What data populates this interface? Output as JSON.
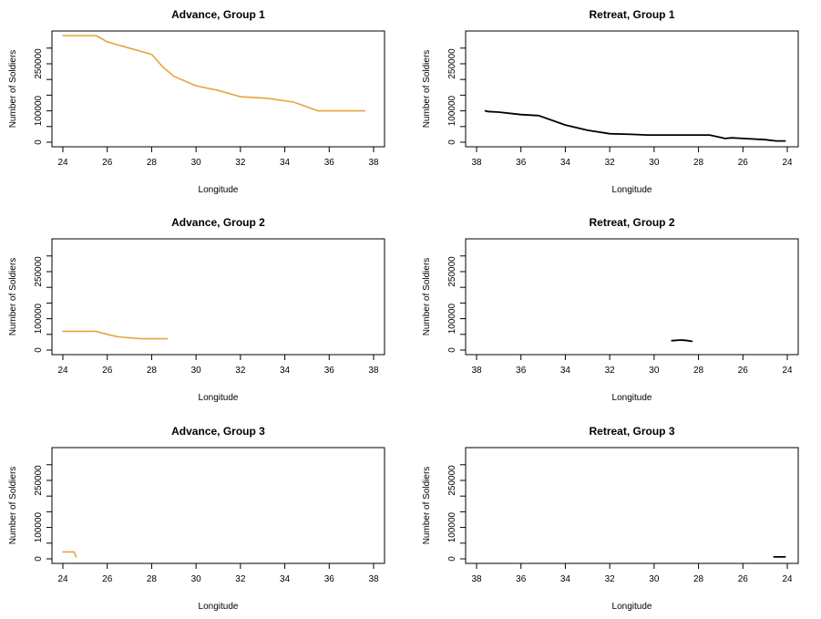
{
  "colors": {
    "advance": "#E8A33D",
    "retreat": "#000000",
    "frame": "#000000"
  },
  "chart_data": [
    {
      "type": "line",
      "title": "Advance, Group  1",
      "xlabel": "Longitude",
      "ylabel": "Number of Soldiers",
      "xlim": [
        24,
        38
      ],
      "ylim": [
        0,
        340000
      ],
      "x_reversed": false,
      "xticks": [
        "24",
        "26",
        "28",
        "30",
        "32",
        "34",
        "36",
        "38"
      ],
      "yticks": [
        "0",
        "100000",
        "250000"
      ],
      "series": [
        {
          "color": "#E8A33D",
          "x": [
            24.0,
            24.5,
            25.5,
            26.0,
            27.0,
            28.0,
            28.5,
            29.0,
            30.0,
            31.0,
            32.0,
            33.2,
            34.4,
            35.5,
            36.0,
            37.6
          ],
          "y": [
            340000,
            340000,
            340000,
            320000,
            300000,
            280000,
            240000,
            210000,
            180000,
            165000,
            145000,
            140000,
            128000,
            100000,
            100000,
            100000
          ]
        }
      ]
    },
    {
      "type": "line",
      "title": "Retreat, Group 1",
      "xlabel": "Longitude",
      "ylabel": "Number of Soldiers",
      "xlim": [
        38,
        24
      ],
      "ylim": [
        0,
        340000
      ],
      "x_reversed": true,
      "xticks": [
        "38",
        "36",
        "34",
        "32",
        "30",
        "28",
        "26",
        "24"
      ],
      "yticks": [
        "0",
        "100000",
        "250000"
      ],
      "series": [
        {
          "color": "#000000",
          "x": [
            37.6,
            37.5,
            37.0,
            36.0,
            35.2,
            34.0,
            33.0,
            32.0,
            31.0,
            30.3,
            29.0,
            28.0,
            27.5,
            26.8,
            26.5,
            26.0,
            25.0,
            24.5,
            24.1
          ],
          "y": [
            100000,
            98000,
            96000,
            88000,
            85000,
            55000,
            38000,
            27000,
            25000,
            23000,
            23000,
            23000,
            23000,
            12000,
            14000,
            12000,
            8000,
            4000,
            4000
          ]
        }
      ]
    },
    {
      "type": "line",
      "title": "Advance, Group  2",
      "xlabel": "Longitude",
      "ylabel": "Number of Soldiers",
      "xlim": [
        24,
        38
      ],
      "ylim": [
        0,
        340000
      ],
      "x_reversed": false,
      "xticks": [
        "24",
        "26",
        "28",
        "30",
        "32",
        "34",
        "36",
        "38"
      ],
      "yticks": [
        "0",
        "100000",
        "250000"
      ],
      "series": [
        {
          "color": "#E8A33D",
          "x": [
            24.0,
            25.5,
            26.0,
            26.5,
            27.5,
            28.0,
            28.7
          ],
          "y": [
            60000,
            60000,
            50000,
            42000,
            36000,
            36000,
            36000
          ]
        }
      ]
    },
    {
      "type": "line",
      "title": "Retreat, Group 2",
      "xlabel": "Longitude",
      "ylabel": "Number of Soldiers",
      "xlim": [
        38,
        24
      ],
      "ylim": [
        0,
        340000
      ],
      "x_reversed": true,
      "xticks": [
        "38",
        "36",
        "34",
        "32",
        "30",
        "28",
        "26",
        "24"
      ],
      "yticks": [
        "0",
        "100000",
        "250000"
      ],
      "series": [
        {
          "color": "#000000",
          "x": [
            29.2,
            28.8,
            28.6,
            28.3
          ],
          "y": [
            30000,
            32000,
            31000,
            28000
          ]
        }
      ]
    },
    {
      "type": "line",
      "title": "Advance, Group  3",
      "xlabel": "Longitude",
      "ylabel": "Number of Soldiers",
      "xlim": [
        24,
        38
      ],
      "ylim": [
        0,
        340000
      ],
      "x_reversed": false,
      "xticks": [
        "24",
        "26",
        "28",
        "30",
        "32",
        "34",
        "36",
        "38"
      ],
      "yticks": [
        "0",
        "100000",
        "250000"
      ],
      "series": [
        {
          "color": "#E8A33D",
          "x": [
            24.0,
            24.5,
            24.6
          ],
          "y": [
            22000,
            22000,
            6000
          ]
        }
      ]
    },
    {
      "type": "line",
      "title": "Retreat, Group 3",
      "xlabel": "Longitude",
      "ylabel": "Number of Soldiers",
      "xlim": [
        38,
        24
      ],
      "ylim": [
        0,
        340000
      ],
      "x_reversed": true,
      "xticks": [
        "38",
        "36",
        "34",
        "32",
        "30",
        "28",
        "26",
        "24"
      ],
      "yticks": [
        "0",
        "100000",
        "250000"
      ],
      "series": [
        {
          "color": "#000000",
          "x": [
            24.6,
            24.1
          ],
          "y": [
            6000,
            6000
          ]
        }
      ]
    }
  ]
}
